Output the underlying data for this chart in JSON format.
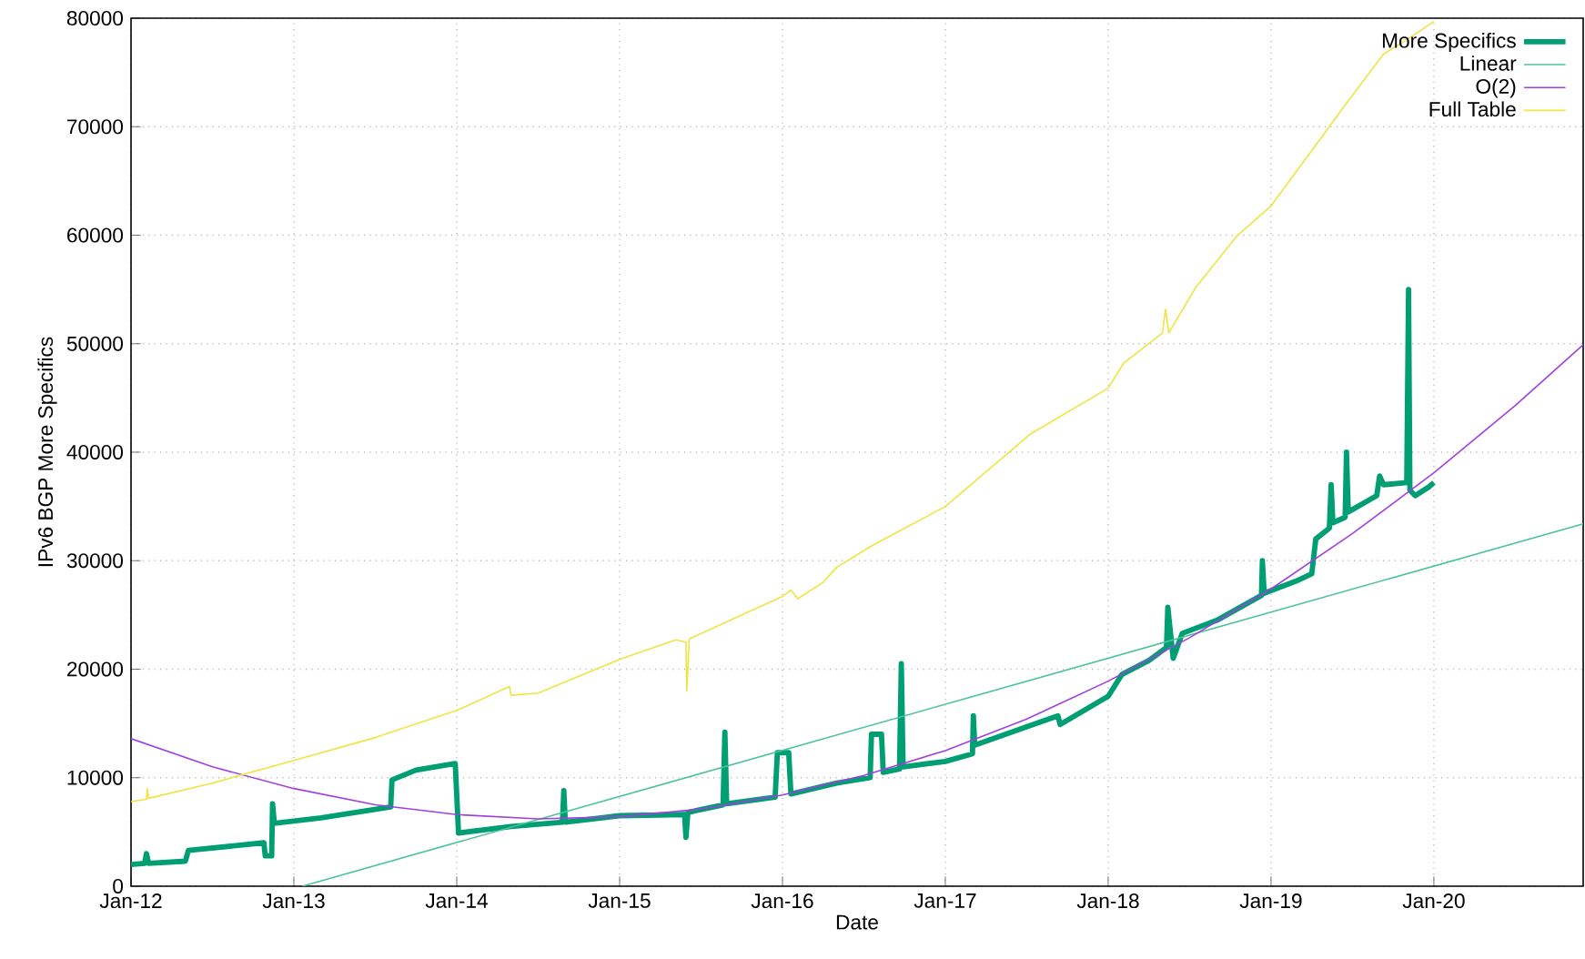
{
  "chart_data": {
    "type": "line",
    "xlabel": "Date",
    "ylabel": "IPv6 BGP More Specifics",
    "xlim": [
      "2012-01-01",
      "2020-12-01"
    ],
    "ylim": [
      0,
      80000
    ],
    "xticks": [
      {
        "value": "2012-01-01",
        "label": "Jan-12"
      },
      {
        "value": "2013-01-01",
        "label": "Jan-13"
      },
      {
        "value": "2014-01-01",
        "label": "Jan-14"
      },
      {
        "value": "2015-01-01",
        "label": "Jan-15"
      },
      {
        "value": "2016-01-01",
        "label": "Jan-16"
      },
      {
        "value": "2017-01-01",
        "label": "Jan-17"
      },
      {
        "value": "2018-01-01",
        "label": "Jan-18"
      },
      {
        "value": "2019-01-01",
        "label": "Jan-19"
      },
      {
        "value": "2020-01-01",
        "label": "Jan-20"
      }
    ],
    "yticks": [
      0,
      10000,
      20000,
      30000,
      40000,
      50000,
      60000,
      70000,
      80000
    ],
    "grid": true,
    "legend": "top right",
    "marker": "none",
    "line_style": "solid",
    "series": [
      {
        "name": "More Specifics",
        "color": "#009e73",
        "x": [
          "2012-01-01",
          "2012-02-01",
          "2012-02-05",
          "2012-02-10",
          "2012-05-01",
          "2012-05-08",
          "2012-10-25",
          "2012-10-28",
          "2012-11-12",
          "2012-11-14",
          "2012-11-18",
          "2013-03-01",
          "2013-08-05",
          "2013-08-08",
          "2013-10-01",
          "2013-12-28",
          "2014-01-05",
          "2014-05-01",
          "2014-08-25",
          "2014-08-28",
          "2014-09-01",
          "2015-01-01",
          "2015-05-25",
          "2015-05-28",
          "2015-06-02",
          "2015-08-20",
          "2015-08-24",
          "2015-08-28",
          "2015-12-15",
          "2015-12-20",
          "2016-01-15",
          "2016-01-20",
          "2016-05-01",
          "2016-07-15",
          "2016-07-18",
          "2016-08-10",
          "2016-08-14",
          "2016-09-20",
          "2016-09-24",
          "2016-09-28",
          "2017-01-01",
          "2017-03-01",
          "2017-03-03",
          "2017-03-06",
          "2017-07-01",
          "2017-09-10",
          "2017-09-15",
          "2018-01-01",
          "2018-02-01",
          "2018-04-01",
          "2018-05-10",
          "2018-05-13",
          "2018-05-25",
          "2018-06-15",
          "2018-09-01",
          "2018-12-10",
          "2018-12-12",
          "2018-12-16",
          "2019-03-01",
          "2019-04-01",
          "2019-04-10",
          "2019-05-10",
          "2019-05-14",
          "2019-05-18",
          "2019-06-15",
          "2019-06-18",
          "2019-06-22",
          "2019-08-25",
          "2019-09-01",
          "2019-09-10",
          "2019-11-01",
          "2019-11-05",
          "2019-11-08",
          "2019-11-20",
          "2019-12-20",
          "2020-01-01"
        ],
        "values": [
          2000,
          2100,
          3000,
          2100,
          2300,
          3300,
          4000,
          2800,
          2800,
          7600,
          5800,
          6300,
          7300,
          9800,
          10700,
          11300,
          4900,
          5500,
          5900,
          8800,
          5900,
          6500,
          6600,
          4500,
          6800,
          7500,
          14200,
          7600,
          8200,
          12300,
          12300,
          8500,
          9500,
          10000,
          14000,
          14000,
          10500,
          10800,
          20500,
          11000,
          11500,
          12200,
          15700,
          13000,
          14700,
          15700,
          14900,
          17500,
          19500,
          20800,
          22000,
          25700,
          21000,
          23300,
          24500,
          26800,
          30000,
          27000,
          28200,
          28800,
          32000,
          33000,
          37000,
          33500,
          34000,
          40000,
          34500,
          36000,
          37800,
          37000,
          37200,
          55000,
          36500,
          36000,
          36800,
          37200
        ]
      },
      {
        "name": "Linear",
        "color": "#4cc39a",
        "x": [
          "2013-01-20",
          "2020-12-01"
        ],
        "values": [
          0,
          33400
        ]
      },
      {
        "name": "O(2)",
        "color": "#a040e0",
        "x": [
          "2012-01-01",
          "2012-07-01",
          "2013-01-01",
          "2013-07-01",
          "2014-01-01",
          "2014-07-01",
          "2015-01-01",
          "2015-07-01",
          "2016-01-01",
          "2016-07-01",
          "2017-01-01",
          "2017-07-01",
          "2018-01-01",
          "2018-07-01",
          "2019-01-01",
          "2019-07-01",
          "2020-01-01",
          "2020-07-01",
          "2020-12-01"
        ],
        "values": [
          13600,
          11000,
          9000,
          7500,
          6600,
          6200,
          6400,
          7100,
          8400,
          10200,
          12500,
          15400,
          18900,
          22900,
          27400,
          32500,
          38100,
          44300,
          49900
        ]
      },
      {
        "name": "Full Table",
        "color": "#f0e442",
        "x": [
          "2012-01-01",
          "2012-02-05",
          "2012-02-07",
          "2012-02-10",
          "2012-07-01",
          "2013-01-01",
          "2013-07-01",
          "2014-01-01",
          "2014-04-28",
          "2014-05-01",
          "2014-07-01",
          "2015-01-01",
          "2015-05-05",
          "2015-05-28",
          "2015-05-30",
          "2015-06-05",
          "2016-01-01",
          "2016-01-20",
          "2016-02-05",
          "2016-04-01",
          "2016-05-01",
          "2016-07-20",
          "2017-01-01",
          "2017-07-10",
          "2018-01-01",
          "2018-02-05",
          "2018-05-01",
          "2018-05-08",
          "2018-05-15",
          "2018-07-15",
          "2018-10-15",
          "2019-01-01",
          "2019-04-01",
          "2019-06-15",
          "2019-09-10",
          "2019-11-15",
          "2020-01-01"
        ],
        "values": [
          7800,
          8000,
          9000,
          8100,
          9500,
          11600,
          13700,
          16200,
          18400,
          17600,
          17800,
          20900,
          22700,
          22500,
          18000,
          22800,
          26700,
          27300,
          26500,
          28000,
          29400,
          31400,
          35000,
          41700,
          45900,
          48200,
          51000,
          53200,
          51000,
          55200,
          59900,
          62700,
          67800,
          72000,
          76700,
          78400,
          79700
        ]
      }
    ]
  }
}
